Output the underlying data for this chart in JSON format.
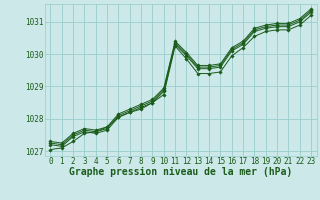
{
  "background_color": "#cce8e8",
  "grid_color": "#99cccc",
  "line_color": "#1a5c1a",
  "marker_color": "#1a5c1a",
  "xlabel": "Graphe pression niveau de la mer (hPa)",
  "xlabel_color": "#1a5c1a",
  "ylim": [
    1026.85,
    1031.55
  ],
  "xlim": [
    -0.5,
    23.5
  ],
  "yticks": [
    1027,
    1028,
    1029,
    1030,
    1031
  ],
  "xticks": [
    0,
    1,
    2,
    3,
    4,
    5,
    6,
    7,
    8,
    9,
    10,
    11,
    12,
    13,
    14,
    15,
    16,
    17,
    18,
    19,
    20,
    21,
    22,
    23
  ],
  "series": [
    [
      1027.2,
      1027.15,
      1027.45,
      1027.6,
      1027.55,
      1027.65,
      1028.05,
      1028.2,
      1028.35,
      1028.5,
      1028.85,
      1030.3,
      1029.95,
      1029.55,
      1029.55,
      1029.6,
      1030.1,
      1030.3,
      1030.7,
      1030.8,
      1030.85,
      1030.85,
      1031.0,
      1031.3
    ],
    [
      1027.25,
      1027.2,
      1027.5,
      1027.65,
      1027.6,
      1027.7,
      1028.1,
      1028.25,
      1028.4,
      1028.55,
      1028.9,
      1030.35,
      1030.0,
      1029.6,
      1029.6,
      1029.65,
      1030.15,
      1030.35,
      1030.75,
      1030.85,
      1030.9,
      1030.9,
      1031.05,
      1031.35
    ],
    [
      1027.3,
      1027.25,
      1027.55,
      1027.7,
      1027.65,
      1027.75,
      1028.15,
      1028.3,
      1028.45,
      1028.6,
      1028.95,
      1030.4,
      1030.05,
      1029.65,
      1029.65,
      1029.7,
      1030.2,
      1030.4,
      1030.8,
      1030.9,
      1030.95,
      1030.95,
      1031.1,
      1031.4
    ],
    [
      1027.05,
      1027.1,
      1027.3,
      1027.55,
      1027.6,
      1027.75,
      1028.05,
      1028.2,
      1028.3,
      1028.5,
      1028.75,
      1030.25,
      1029.85,
      1029.4,
      1029.4,
      1029.45,
      1029.95,
      1030.2,
      1030.55,
      1030.7,
      1030.75,
      1030.75,
      1030.9,
      1031.2
    ]
  ],
  "tick_color": "#1a5c1a",
  "tick_fontsize": 5.5,
  "xlabel_fontsize": 7.0
}
